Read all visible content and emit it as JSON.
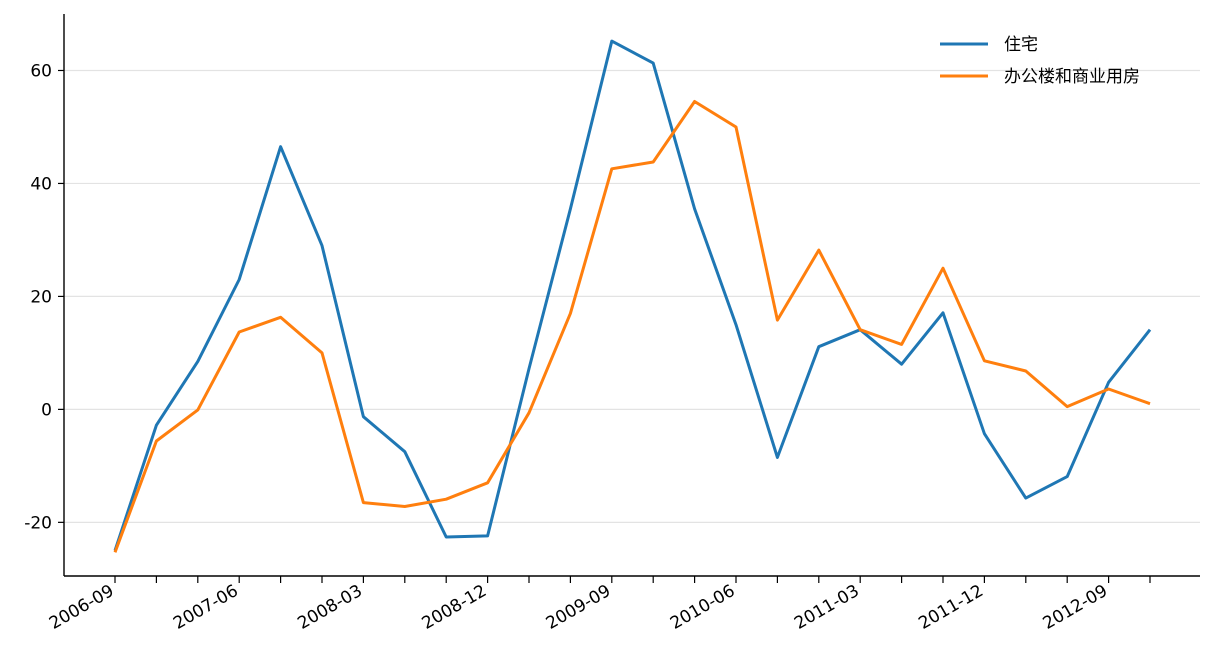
{
  "chart_data": {
    "type": "line",
    "x": [
      "2006-09",
      "2006-12",
      "2007-03",
      "2007-06",
      "2007-09",
      "2007-12",
      "2008-03",
      "2008-06",
      "2008-09",
      "2008-12",
      "2009-03",
      "2009-06",
      "2009-09",
      "2009-12",
      "2010-03",
      "2010-06",
      "2010-09",
      "2010-12",
      "2011-03",
      "2011-06",
      "2011-09",
      "2011-12",
      "2012-03",
      "2012-06",
      "2012-09",
      "2012-12"
    ],
    "x_tick_labels": [
      "2006-09",
      "2007-06",
      "2008-03",
      "2008-12",
      "2009-09",
      "2010-06",
      "2011-03",
      "2011-12",
      "2012-09"
    ],
    "series": [
      {
        "name": "住宅",
        "color": "#1f77b4",
        "values": [
          -25,
          -2.8,
          8.5,
          23,
          46.5,
          29,
          -1.3,
          -7.5,
          -22.6,
          -22.4,
          7.2,
          35.5,
          65.2,
          61.3,
          35.5,
          15,
          -8.5,
          11.1,
          14.1,
          8,
          17.1,
          -4.3,
          -15.7,
          -11.9,
          4.8,
          14.1
        ]
      },
      {
        "name": "办公楼和商业用房",
        "color": "#ff7f0e",
        "values": [
          -25.3,
          -5.6,
          -0.1,
          13.7,
          16.3,
          10,
          -16.5,
          -17.2,
          -15.9,
          -13,
          -0.6,
          17,
          42.6,
          43.8,
          54.5,
          50,
          15.8,
          28.2,
          14.1,
          11.5,
          25,
          8.6,
          6.8,
          0.5,
          3.6,
          1
        ]
      }
    ],
    "ylim": [
      -29.5,
      70
    ],
    "y_ticks": [
      -20,
      0,
      20,
      40,
      60
    ],
    "grid": "horizontal",
    "legend_position": "top-right",
    "title": "",
    "xlabel": "",
    "ylabel": ""
  }
}
